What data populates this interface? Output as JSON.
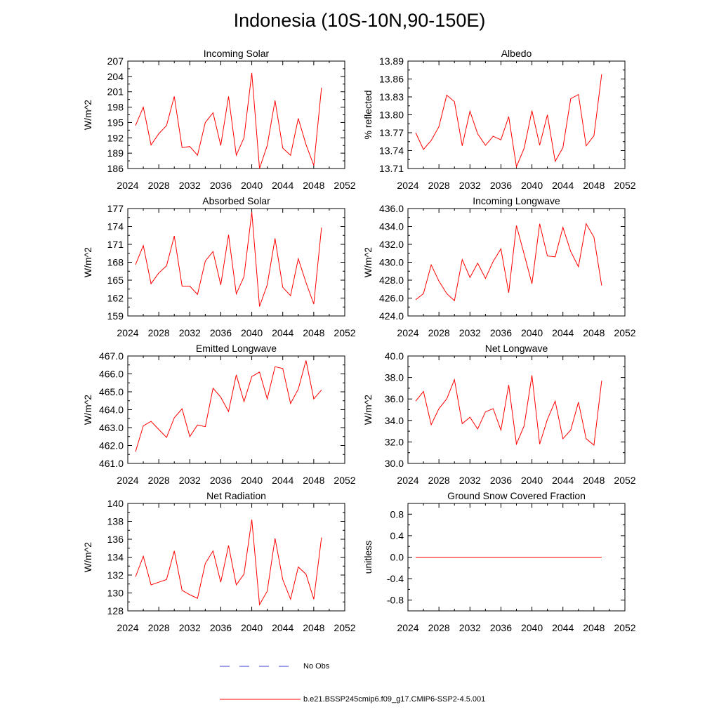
{
  "title": "Indonesia (10S-10N,90-150E)",
  "legend": {
    "obs_label": "No Obs",
    "model_label": "b.e21.BSSP245cmip6.f09_g17.CMIP6-SSP2-4.5.001",
    "obs_color": "#3b3bd6",
    "model_color": "#ff0000"
  },
  "chart_data": [
    {
      "type": "line",
      "title": "Incoming Solar",
      "ylabel": "W/m^2",
      "xlim": [
        2024,
        2052
      ],
      "ylim": [
        186,
        207
      ],
      "xticks": [
        "2024",
        "2028",
        "2032",
        "2036",
        "2040",
        "2044",
        "2048",
        "2052"
      ],
      "yticks": [
        "186",
        "189",
        "192",
        "195",
        "198",
        "201",
        "204",
        "207"
      ],
      "x": [
        2025,
        2026,
        2027,
        2028,
        2029,
        2030,
        2031,
        2032,
        2033,
        2034,
        2035,
        2036,
        2037,
        2038,
        2039,
        2040,
        2041,
        2042,
        2043,
        2044,
        2045,
        2046,
        2047,
        2048,
        2049
      ],
      "y": [
        194.4,
        198.0,
        190.6,
        192.8,
        194.4,
        200.1,
        190.1,
        190.3,
        188.6,
        195.0,
        196.9,
        190.5,
        200.1,
        188.6,
        192.0,
        204.7,
        186.0,
        190.5,
        199.3,
        190.0,
        188.6,
        195.8,
        190.7,
        186.6,
        201.8
      ]
    },
    {
      "type": "line",
      "title": "Albedo",
      "ylabel": "% reflected",
      "xlim": [
        2024,
        2052
      ],
      "ylim": [
        13.71,
        13.89
      ],
      "xticks": [
        "2024",
        "2028",
        "2032",
        "2036",
        "2040",
        "2044",
        "2048",
        "2052"
      ],
      "yticks": [
        "13.71",
        "13.74",
        "13.77",
        "13.80",
        "13.83",
        "13.86",
        "13.89"
      ],
      "x": [
        2025,
        2026,
        2027,
        2028,
        2029,
        2030,
        2031,
        2032,
        2033,
        2034,
        2035,
        2036,
        2037,
        2038,
        2039,
        2040,
        2041,
        2042,
        2043,
        2044,
        2045,
        2046,
        2047,
        2048,
        2049
      ],
      "y": [
        13.77,
        13.742,
        13.757,
        13.78,
        13.833,
        13.822,
        13.748,
        13.806,
        13.768,
        13.749,
        13.764,
        13.758,
        13.797,
        13.713,
        13.744,
        13.807,
        13.749,
        13.8,
        13.722,
        13.745,
        13.827,
        13.834,
        13.748,
        13.765,
        13.868
      ]
    },
    {
      "type": "line",
      "title": "Absorbed Solar",
      "ylabel": "W/m^2",
      "xlim": [
        2024,
        2052
      ],
      "ylim": [
        159,
        177
      ],
      "xticks": [
        "2024",
        "2028",
        "2032",
        "2036",
        "2040",
        "2044",
        "2048",
        "2052"
      ],
      "yticks": [
        "159",
        "162",
        "165",
        "168",
        "171",
        "174",
        "177"
      ],
      "x": [
        2025,
        2026,
        2027,
        2028,
        2029,
        2030,
        2031,
        2032,
        2033,
        2034,
        2035,
        2036,
        2037,
        2038,
        2039,
        2040,
        2041,
        2042,
        2043,
        2044,
        2045,
        2046,
        2047,
        2048,
        2049
      ],
      "y": [
        167.6,
        170.8,
        164.4,
        166.2,
        167.4,
        172.4,
        164.0,
        164.0,
        162.6,
        168.2,
        169.8,
        164.2,
        172.6,
        162.7,
        165.6,
        176.4,
        160.6,
        164.2,
        172.0,
        163.8,
        162.4,
        168.6,
        164.6,
        161.0,
        173.8
      ]
    },
    {
      "type": "line",
      "title": "Incoming Longwave",
      "ylabel": "W/m^2",
      "xlim": [
        2024,
        2052
      ],
      "ylim": [
        424,
        436
      ],
      "xticks": [
        "2024",
        "2028",
        "2032",
        "2036",
        "2040",
        "2044",
        "2048",
        "2052"
      ],
      "yticks": [
        "424.0",
        "426.0",
        "428.0",
        "430.0",
        "432.0",
        "434.0",
        "436.0"
      ],
      "x": [
        2025,
        2026,
        2027,
        2028,
        2029,
        2030,
        2031,
        2032,
        2033,
        2034,
        2035,
        2036,
        2037,
        2038,
        2039,
        2040,
        2041,
        2042,
        2043,
        2044,
        2045,
        2046,
        2047,
        2048,
        2049
      ],
      "y": [
        425.8,
        426.5,
        429.7,
        427.9,
        426.5,
        425.7,
        430.3,
        428.3,
        429.9,
        428.2,
        430.1,
        431.5,
        426.6,
        434.1,
        430.9,
        427.6,
        434.3,
        430.7,
        430.6,
        433.9,
        431.2,
        429.5,
        434.3,
        432.8,
        427.4
      ]
    },
    {
      "type": "line",
      "title": "Emitted Longwave",
      "ylabel": "W/m^2",
      "xlim": [
        2024,
        2052
      ],
      "ylim": [
        461,
        467
      ],
      "xticks": [
        "2024",
        "2028",
        "2032",
        "2036",
        "2040",
        "2044",
        "2048",
        "2052"
      ],
      "yticks": [
        "461.0",
        "462.0",
        "463.0",
        "464.0",
        "465.0",
        "466.0",
        "467.0"
      ],
      "x": [
        2025,
        2026,
        2027,
        2028,
        2029,
        2030,
        2031,
        2032,
        2033,
        2034,
        2035,
        2036,
        2037,
        2038,
        2039,
        2040,
        2041,
        2042,
        2043,
        2044,
        2045,
        2046,
        2047,
        2048,
        2049
      ],
      "y": [
        461.65,
        463.1,
        463.35,
        462.9,
        462.45,
        463.55,
        464.05,
        462.5,
        463.15,
        463.05,
        465.2,
        464.7,
        463.9,
        465.95,
        464.45,
        465.85,
        466.1,
        464.6,
        466.4,
        466.3,
        464.35,
        465.15,
        466.75,
        464.6,
        465.1
      ]
    },
    {
      "type": "line",
      "title": "Net Longwave",
      "ylabel": "W/m^2",
      "xlim": [
        2024,
        2052
      ],
      "ylim": [
        30,
        40
      ],
      "xticks": [
        "2024",
        "2028",
        "2032",
        "2036",
        "2040",
        "2044",
        "2048",
        "2052"
      ],
      "yticks": [
        "30.0",
        "32.0",
        "34.0",
        "36.0",
        "38.0",
        "40.0"
      ],
      "x": [
        2025,
        2026,
        2027,
        2028,
        2029,
        2030,
        2031,
        2032,
        2033,
        2034,
        2035,
        2036,
        2037,
        2038,
        2039,
        2040,
        2041,
        2042,
        2043,
        2044,
        2045,
        2046,
        2047,
        2048,
        2049
      ],
      "y": [
        35.8,
        36.7,
        33.6,
        35.1,
        36.0,
        37.8,
        33.7,
        34.3,
        33.2,
        34.8,
        35.1,
        33.1,
        37.3,
        31.8,
        33.5,
        38.2,
        31.8,
        34.1,
        35.8,
        32.3,
        33.1,
        35.7,
        32.3,
        31.7,
        37.7
      ]
    },
    {
      "type": "line",
      "title": "Net Radiation",
      "ylabel": "W/m^2",
      "xlim": [
        2024,
        2052
      ],
      "ylim": [
        128,
        140
      ],
      "xticks": [
        "2024",
        "2028",
        "2032",
        "2036",
        "2040",
        "2044",
        "2048",
        "2052"
      ],
      "yticks": [
        "128",
        "130",
        "132",
        "134",
        "136",
        "138",
        "140"
      ],
      "x": [
        2025,
        2026,
        2027,
        2028,
        2029,
        2030,
        2031,
        2032,
        2033,
        2034,
        2035,
        2036,
        2037,
        2038,
        2039,
        2040,
        2041,
        2042,
        2043,
        2044,
        2045,
        2046,
        2047,
        2048,
        2049
      ],
      "y": [
        131.8,
        134.1,
        130.9,
        131.2,
        131.5,
        134.7,
        130.3,
        129.8,
        129.4,
        133.3,
        134.7,
        131.2,
        135.3,
        130.9,
        132.1,
        138.2,
        128.7,
        130.2,
        136.1,
        131.5,
        129.3,
        132.9,
        132.1,
        129.3,
        136.2
      ]
    },
    {
      "type": "line",
      "title": "Ground Snow Covered Fraction",
      "ylabel": "unitless",
      "xlim": [
        2024,
        2052
      ],
      "ylim": [
        -1.0,
        1.0
      ],
      "xticks": [
        "2024",
        "2028",
        "2032",
        "2036",
        "2040",
        "2044",
        "2048",
        "2052"
      ],
      "yticks": [
        "-0.8",
        "-0.4",
        "0.0",
        "0.4",
        "0.8"
      ],
      "ytick_values": [
        -0.8,
        -0.4,
        0.0,
        0.4,
        0.8
      ],
      "x": [
        2025,
        2049
      ],
      "y": [
        0.0,
        0.0
      ]
    }
  ]
}
